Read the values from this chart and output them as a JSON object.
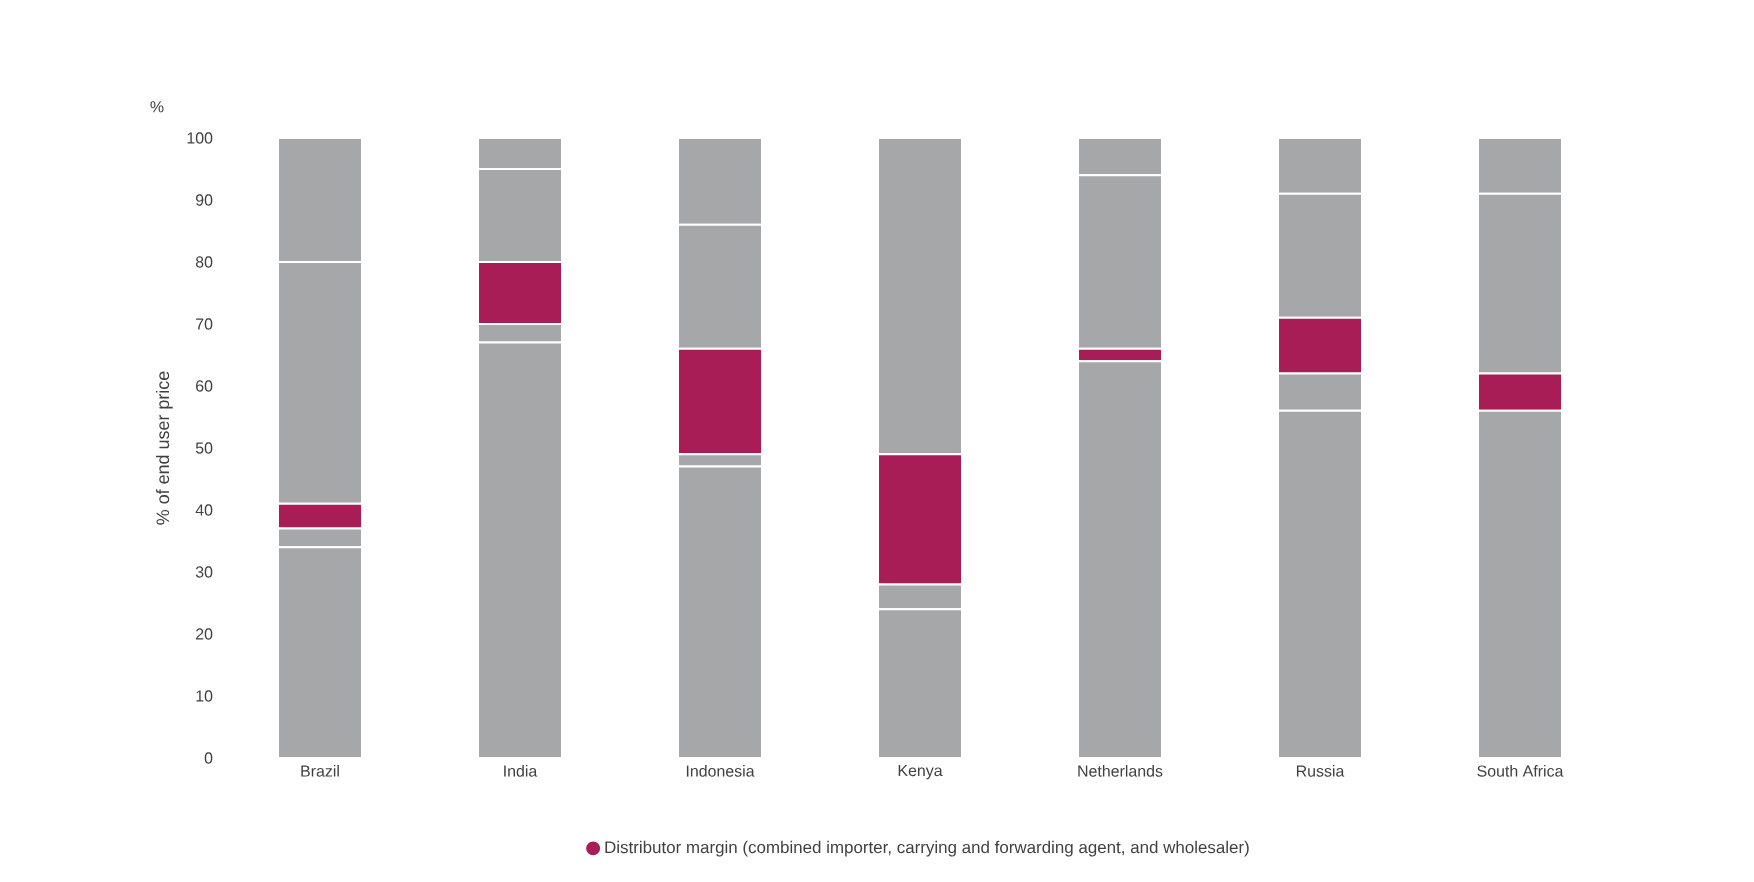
{
  "chart_data": {
    "type": "bar",
    "stacked": true,
    "ylabel": "% of end user price",
    "annotations": [
      "%"
    ],
    "categories": [
      "Brazil",
      "India",
      "Indonesia",
      "Kenya",
      "Netherlands",
      "Russia",
      "South Africa"
    ],
    "series": [
      {
        "color": "#a6a7a9",
        "values": [
          34,
          67,
          47,
          24,
          64,
          56,
          56
        ]
      },
      {
        "color": "#a6a7a9",
        "values": [
          3,
          3,
          2,
          4,
          null,
          6,
          null
        ]
      },
      {
        "name": "Distributor margin (combined importer, carrying and forwarding agent, and wholesaler)",
        "color": "#a91d57",
        "values": [
          4,
          10,
          17,
          21,
          2,
          9,
          6
        ]
      },
      {
        "color": "#a6a7a9",
        "values": [
          39,
          15,
          20,
          51,
          28,
          20,
          29
        ]
      },
      {
        "color": "#a6a7a9",
        "values": [
          20,
          5,
          14,
          null,
          6,
          9,
          9
        ]
      }
    ],
    "ylim": [
      0,
      100
    ],
    "yticks": [
      0,
      10,
      20,
      30,
      40,
      50,
      60,
      70,
      80,
      90,
      100
    ],
    "grid": false,
    "legend": "bottom",
    "marker": "circle"
  }
}
